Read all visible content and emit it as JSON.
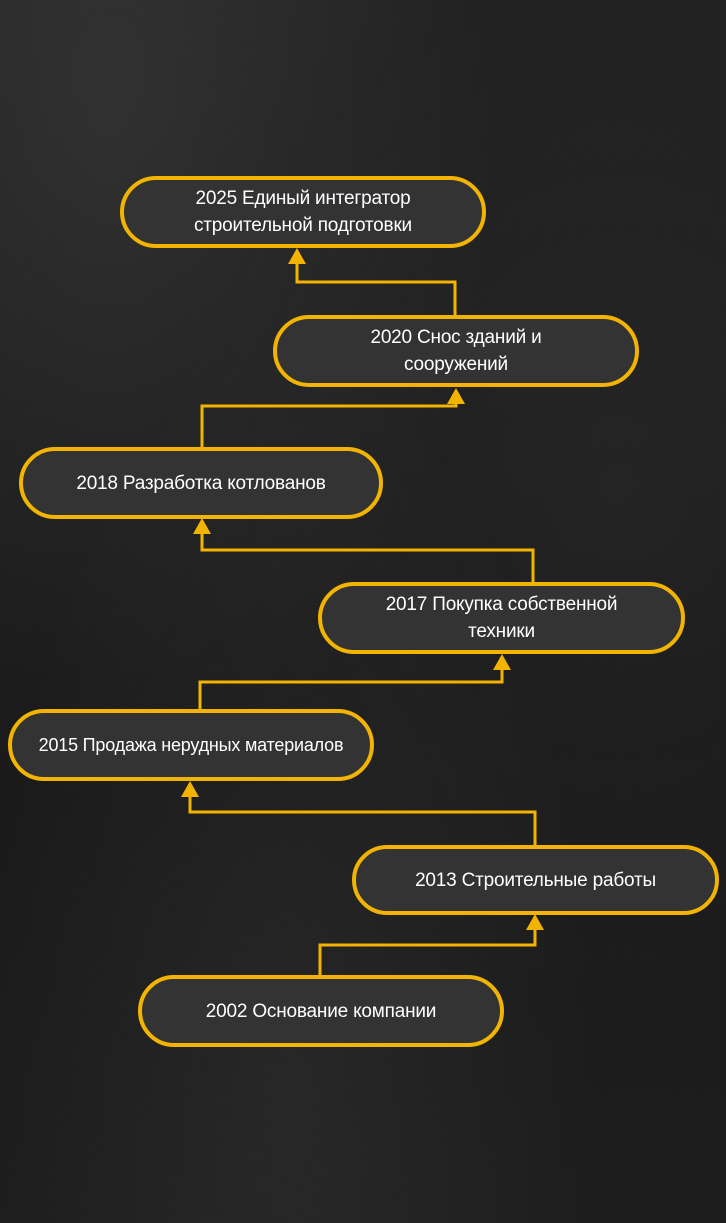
{
  "colors": {
    "accent": "#f2b400",
    "node_fill": "#333333",
    "text": "#ffffff",
    "background": "#1b1b1b"
  },
  "timeline": [
    {
      "year": "2025",
      "text": "2025 Единый интегратор строительной подготовки"
    },
    {
      "year": "2020",
      "text": "2020 Снос зданий и сооружений"
    },
    {
      "year": "2018",
      "text": "2018 Разработка котлованов"
    },
    {
      "year": "2017",
      "text": "2017 Покупка собственной техники"
    },
    {
      "year": "2015",
      "text": "2015 Продажа нерудных материалов"
    },
    {
      "year": "2013",
      "text": "2013 Строительные работы"
    },
    {
      "year": "2002",
      "text": "2002 Основание компании"
    }
  ]
}
